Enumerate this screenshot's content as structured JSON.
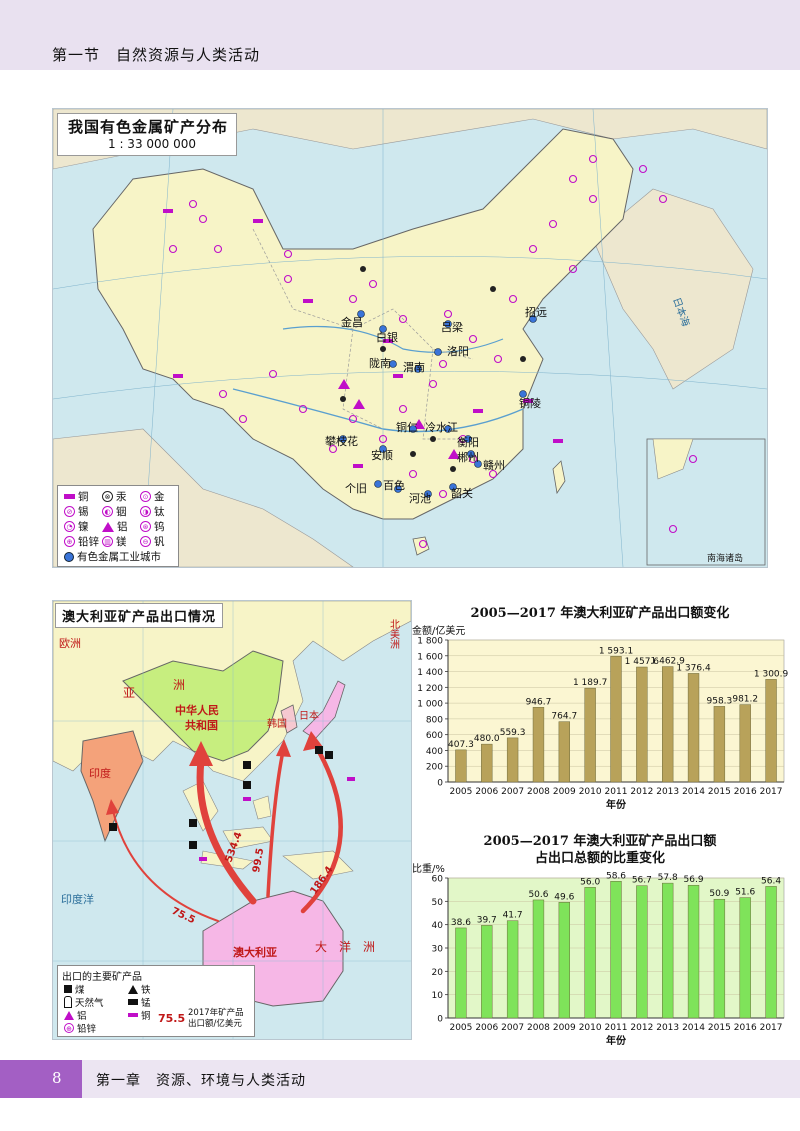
{
  "header": {
    "title": "第一节　自然资源与人类活动"
  },
  "china_map": {
    "title": "我国有色金属矿产分布",
    "scale": "1 : 33 000 000",
    "cities": [
      "金昌",
      "白银",
      "吕梁",
      "招远",
      "洛阳",
      "陇南",
      "渭南",
      "铜陵",
      "攀枝花",
      "安顺",
      "铜仁",
      "冷水江",
      "衡阳",
      "郴州",
      "赣州",
      "个旧",
      "百色",
      "河池",
      "韶关"
    ],
    "regions": [
      "日本海",
      "南海诸岛"
    ],
    "legend": [
      {
        "symbol": "bar",
        "label": "铜"
      },
      {
        "symbol": "circle",
        "glyph": "⊗",
        "label": "汞"
      },
      {
        "symbol": "circle",
        "glyph": "⊙",
        "label": "金"
      },
      {
        "symbol": "circle",
        "glyph": "⊘",
        "label": "锡"
      },
      {
        "symbol": "circle",
        "glyph": "◐",
        "label": "铟"
      },
      {
        "symbol": "circle",
        "glyph": "◑",
        "label": "钛"
      },
      {
        "symbol": "circle",
        "glyph": "◔",
        "label": "镍"
      },
      {
        "symbol": "triangle",
        "label": "铝"
      },
      {
        "symbol": "circle",
        "glyph": "⊛",
        "label": "钨"
      },
      {
        "symbol": "circle",
        "glyph": "⊕",
        "label": "铅锌"
      },
      {
        "symbol": "circle",
        "glyph": "▥",
        "label": "镁"
      },
      {
        "symbol": "circle",
        "glyph": "⊖",
        "label": "钒"
      }
    ],
    "legend_city": "有色金属工业城市",
    "colors": {
      "land": "#f7f4c7",
      "sea": "#cfe8ee",
      "symbol": "#c00ec8",
      "city": "#3a74d8"
    }
  },
  "aus_map": {
    "title": "澳大利亚矿产品出口情况",
    "labels": {
      "europe": "欧洲",
      "asia1": "亚",
      "asia2": "洲",
      "prc1": "中华人民",
      "prc2": "共和国",
      "korea": "韩国",
      "japan": "日本",
      "india": "印度",
      "australia": "澳大利亚",
      "oceania": "大　洋　洲",
      "indian_ocean": "印度洋",
      "north_america": "北美洲"
    },
    "flows": {
      "china": "534.4",
      "korea": "99.5",
      "japan": "186.4",
      "india": "75.5"
    },
    "legend": {
      "title": "出口的主要矿产品",
      "items": [
        "煤",
        "铁",
        "天然气",
        "锰",
        "铝",
        "铜",
        "铅锌"
      ],
      "note_value": "75.5",
      "note_line1": "2017年矿产品",
      "note_line2": "出口额/亿美元"
    },
    "colors": {
      "china": "#c7ee7f",
      "australia": "#f6b7e6",
      "india": "#f4a27a",
      "arrow": "#e0423c"
    }
  },
  "chart1_caption": "2005—2017 年澳大利亚矿产品出口额变化",
  "chart2_caption_line1": "2005—2017 年澳大利亚矿产品出口额",
  "chart2_caption_line2": "占出口总额的比重变化",
  "chart_data": [
    {
      "type": "bar",
      "title": "2005—2017 年澳大利亚矿产品出口额变化",
      "xlabel": "年份",
      "ylabel": "金额/亿美元",
      "categories": [
        "2005",
        "2006",
        "2007",
        "2008",
        "2009",
        "2010",
        "2011",
        "2012",
        "2013",
        "2014",
        "2015",
        "2016",
        "2017"
      ],
      "values": [
        407.3,
        480.0,
        559.3,
        946.7,
        764.7,
        1189.7,
        1593.1,
        1457.6,
        1462.9,
        1376.4,
        958.3,
        981.2,
        1300.9
      ],
      "value_labels": [
        "407.3",
        "480.0",
        "559.3",
        "946.7",
        "764.7",
        "1 189.7",
        "1 593.1",
        "1 457.6",
        "1 462.9",
        "1 376.4",
        "958.3",
        "981.2",
        "1 300.9"
      ],
      "yticks": [
        "0",
        "200",
        "400",
        "600",
        "800",
        "1 000",
        "1 200",
        "1 400",
        "1 600",
        "1 800"
      ],
      "ylim": [
        0,
        1800
      ],
      "bar_color": "#b8a25a",
      "plot_bg": "#fbf6d2"
    },
    {
      "type": "bar",
      "title": "2005—2017 年澳大利亚矿产品出口额占出口总额的比重变化",
      "xlabel": "年份",
      "ylabel": "比重/%",
      "categories": [
        "2005",
        "2006",
        "2007",
        "2008",
        "2009",
        "2010",
        "2011",
        "2012",
        "2013",
        "2014",
        "2015",
        "2016",
        "2017"
      ],
      "values": [
        38.6,
        39.7,
        41.7,
        50.6,
        49.6,
        56.0,
        58.6,
        56.7,
        57.8,
        56.9,
        50.9,
        51.6,
        56.4
      ],
      "value_labels": [
        "38.6",
        "39.7",
        "41.7",
        "50.6",
        "49.6",
        "56.0",
        "58.6",
        "56.7",
        "57.8",
        "56.9",
        "50.9",
        "51.6",
        "56.4"
      ],
      "yticks": [
        "0",
        "10",
        "20",
        "30",
        "40",
        "50",
        "60"
      ],
      "ylim": [
        0,
        60
      ],
      "bar_color": "#7fe35a",
      "plot_bg": "#e2f7c8"
    }
  ],
  "footer": {
    "page": "8",
    "text": "第一章　资源、环境与人类活动"
  }
}
